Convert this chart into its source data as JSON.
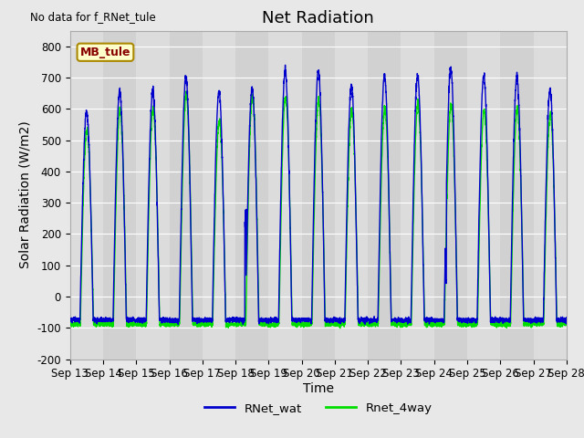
{
  "title": "Net Radiation",
  "xlabel": "Time",
  "ylabel": "Solar Radiation (W/m2)",
  "ylim": [
    -200,
    850
  ],
  "yticks": [
    -200,
    -100,
    0,
    100,
    200,
    300,
    400,
    500,
    600,
    700,
    800
  ],
  "x_labels": [
    "Sep 13",
    "Sep 14",
    "Sep 15",
    "Sep 16",
    "Sep 17",
    "Sep 18",
    "Sep 19",
    "Sep 20",
    "Sep 21",
    "Sep 22",
    "Sep 23",
    "Sep 24",
    "Sep 25",
    "Sep 26",
    "Sep 27",
    "Sep 28"
  ],
  "no_data_text": "No data for f_RNet_tule",
  "station_label": "MB_tule",
  "line1_color": "#0000cc",
  "line2_color": "#00dd00",
  "line1_label": "RNet_wat",
  "line2_label": "Rnet_4way",
  "fig_bg_color": "#e8e8e8",
  "plot_bg_color": "#dcdcdc",
  "n_days": 15,
  "points_per_day": 288,
  "day_peaks_blue": [
    590,
    655,
    655,
    700,
    655,
    665,
    720,
    720,
    675,
    705,
    705,
    730,
    705,
    700,
    660
  ],
  "day_peaks_green": [
    535,
    595,
    600,
    645,
    560,
    640,
    640,
    630,
    600,
    600,
    615,
    615,
    595,
    600,
    580
  ],
  "night_min_blue": -75,
  "night_min_green": -88,
  "title_fontsize": 13,
  "label_fontsize": 10,
  "tick_fontsize": 8.5
}
